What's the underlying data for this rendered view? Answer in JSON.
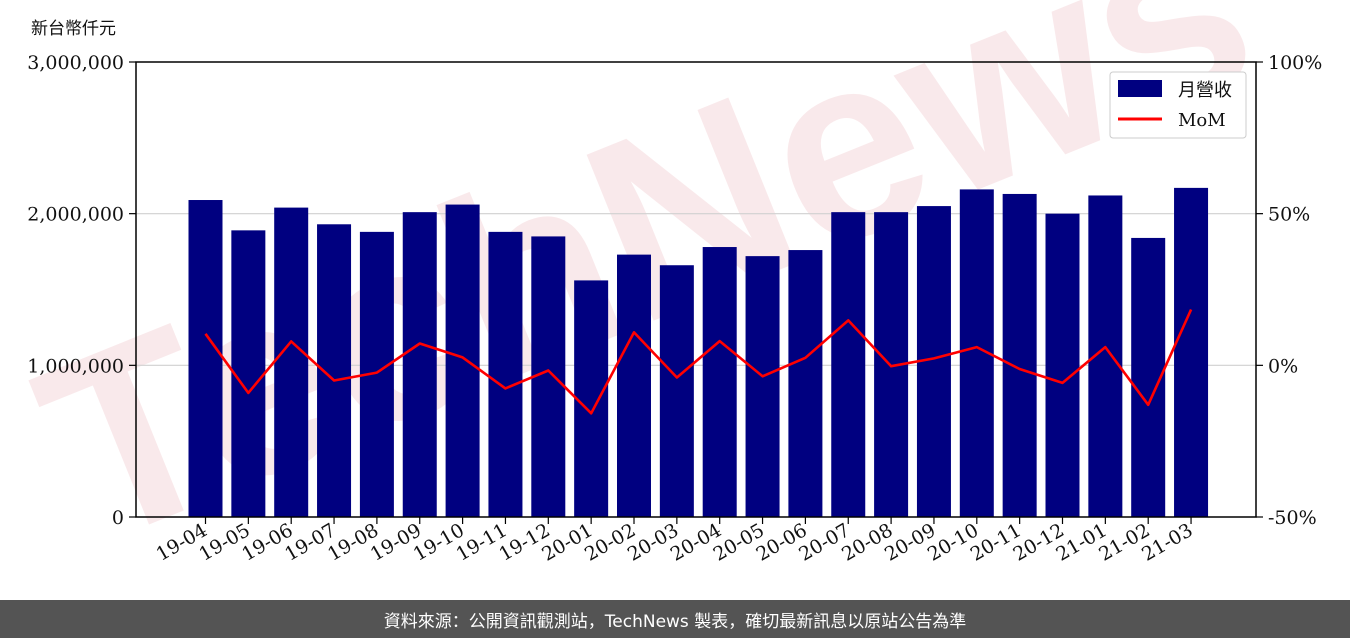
{
  "unit_label": "新台幣仟元",
  "footer_text": "資料來源：公開資訊觀測站，TechNews 製表，確切最新訊息以原站公告為準",
  "colors": {
    "bar": "#000080",
    "line": "#ff0000",
    "grid": "#d0d0d0",
    "footer_bg": "#545454"
  },
  "chart_data": {
    "type": "bar",
    "categories": [
      "19-04",
      "19-05",
      "19-06",
      "19-07",
      "19-08",
      "19-09",
      "19-10",
      "19-11",
      "19-12",
      "20-01",
      "20-02",
      "20-03",
      "20-04",
      "20-05",
      "20-06",
      "20-07",
      "20-08",
      "20-09",
      "20-10",
      "20-11",
      "20-12",
      "21-01",
      "21-02",
      "21-03"
    ],
    "series": [
      {
        "name": "月營收",
        "axis": "left",
        "type": "bar",
        "values": [
          2090000,
          1890000,
          2040000,
          1930000,
          1880000,
          2010000,
          2060000,
          1880000,
          1850000,
          1560000,
          1730000,
          1660000,
          1780000,
          1720000,
          1760000,
          2010000,
          2010000,
          2050000,
          2160000,
          2130000,
          2000000,
          2120000,
          1840000,
          2170000
        ]
      },
      {
        "name": "MoM",
        "axis": "right",
        "type": "line",
        "values": [
          10.4,
          -9.1,
          7.9,
          -5.0,
          -2.4,
          7.2,
          2.6,
          -7.6,
          -1.7,
          -15.8,
          10.9,
          -4.0,
          8.0,
          -3.6,
          2.5,
          14.8,
          -0.3,
          2.3,
          6.0,
          -1.2,
          -5.8,
          6.0,
          -13.0,
          18.4
        ]
      }
    ],
    "y_left": {
      "lim": [
        0,
        3000000
      ],
      "ticks": [
        "0",
        "1,000,000",
        "2,000,000",
        "3,000,000"
      ]
    },
    "y_right": {
      "lim": [
        -50,
        100
      ],
      "ticks": [
        "-50%",
        "0%",
        "50%",
        "100%"
      ]
    },
    "grid": true,
    "legend_position": "top-right",
    "watermark": "TechNews"
  }
}
